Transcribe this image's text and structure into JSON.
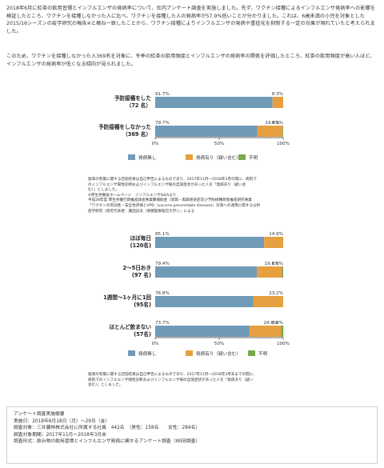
{
  "intro": {
    "p1": "2018年6月に紅茶の飲用習慣とインフルエンザの発病率について、社内アンケート調査を実施しました。先ず、ワクチン接種によるインフルエンザ発病率への影響を検証したところ、ワクチンを接種しなかった人に比べ、ワクチンを接種した人の発病率が57.9%低いことが分かりました。これは、6歳未満の小児を対象とした2015/16シーズンの疫学研究の報告※と概ね一致したことから、ワクチン接種によりインフルエンザの発病や重症化を抑制する一定の効果が現れていたと考えられました。",
    "p2": "このため、ワクチンを接種しなかった人369名を対象に、冬季の紅茶の飲用頻度とインフルエンザの発病率の関係を評価したところ、紅茶の飲用頻度が高い人ほど、インフルエンザの発病率が低くなる傾向が見られました。"
  },
  "colors": {
    "none": "#6f9bb8",
    "sick": "#e6a040",
    "unknown": "#7aa84a"
  },
  "chart1": {
    "axis_ticks": [
      "0%",
      "50%",
      "100%"
    ],
    "legend": [
      "発病無し",
      "発病有り（疑い含む）",
      "不明"
    ],
    "rows": [
      {
        "label1": "予防接種をした",
        "label2": "（72 名）",
        "none": 91.7,
        "sick": 8.3,
        "unknown": 0,
        "t_none": "91.7%",
        "t_sick": "8.3%",
        "t_unknown": ""
      },
      {
        "label1": "予防接種をしなかった",
        "label2": "（369 名）",
        "none": 79.7,
        "sick": 19.8,
        "unknown": 0.5,
        "t_none": "79.7%",
        "t_sick": "19.8%",
        "t_unknown": "0.5%"
      }
    ]
  },
  "note1": [
    "発病の有無に関する回答結果は自己申告によるものであり、2017年11月～2018年3月の間に、病院で",
    "のインフルエンザ陽性診断およびインフルエンザ様の自覚症状があった人を「発病あり（疑い含",
    "む）」としました。",
    "※厚生労働省ホームページ　インフルエンザQ&Aより",
    "平成28年度 厚生労働行政推進調査事業費補助金（新興・再興感染症及び予防接種政策推進研究事業",
    "「ワクチンの有効性・安全性評価とVPD（vaccine preventable diseases）対策への適用に関する分析",
    "疫学研究（研究代表者：廣田良夫（保健医療経営大学））」による"
  ],
  "chart2": {
    "axis_ticks": [
      "0%",
      "50%",
      "100%"
    ],
    "legend": [
      "発病無し",
      "発病有り（疑い含む）",
      "不明"
    ],
    "rows": [
      {
        "label1": "ほぼ毎日",
        "label2": "(120名)",
        "none": 85.1,
        "sick": 14.9,
        "unknown": 0,
        "t_none": "85.1%",
        "t_sick": "14.9%",
        "t_unknown": ""
      },
      {
        "label1": "2～5日おき",
        "label2": "(97 名)",
        "none": 79.4,
        "sick": 19.6,
        "unknown": 1.0,
        "t_none": "79.4%",
        "t_sick": "19.6%",
        "t_unknown": "1.0%"
      },
      {
        "label1": "1週間～1ヶ月に1回",
        "label2": "(95名)",
        "none": 76.8,
        "sick": 23.2,
        "unknown": 0,
        "t_none": "76.8%",
        "t_sick": "23.2%",
        "t_unknown": ""
      },
      {
        "label1": "ほとんど飲まない",
        "label2": "(57名)",
        "none": 73.7,
        "sick": 24.6,
        "unknown": 1.8,
        "t_none": "73.7%",
        "t_sick": "24.6%",
        "t_unknown": "1.8%"
      }
    ]
  },
  "note2": [
    "発病の有無に関する回答結果は自己申告によるものであり、2017年11月～2018年3月末までの間に、",
    "病院でのインフルエンザ陽性診断およびインフルエンザ様の自覚症状があった人を「発病あり（疑い",
    "含む）」としました。"
  ],
  "survey": {
    "title": "アンケート調査実施概要",
    "date": "実施日：2018年6月18日（月）～29日（金）",
    "subjects": "調査対象：三井農林株式会社に所属する社員　442名　（男性：158名　　女性：284名）",
    "period": "調査対象期間：2017年11月～2018年3月末",
    "format": "調査形式：飲み物の飲用習慣とインフルエンザ発病に関するアンケート調査（WEB調査）"
  }
}
